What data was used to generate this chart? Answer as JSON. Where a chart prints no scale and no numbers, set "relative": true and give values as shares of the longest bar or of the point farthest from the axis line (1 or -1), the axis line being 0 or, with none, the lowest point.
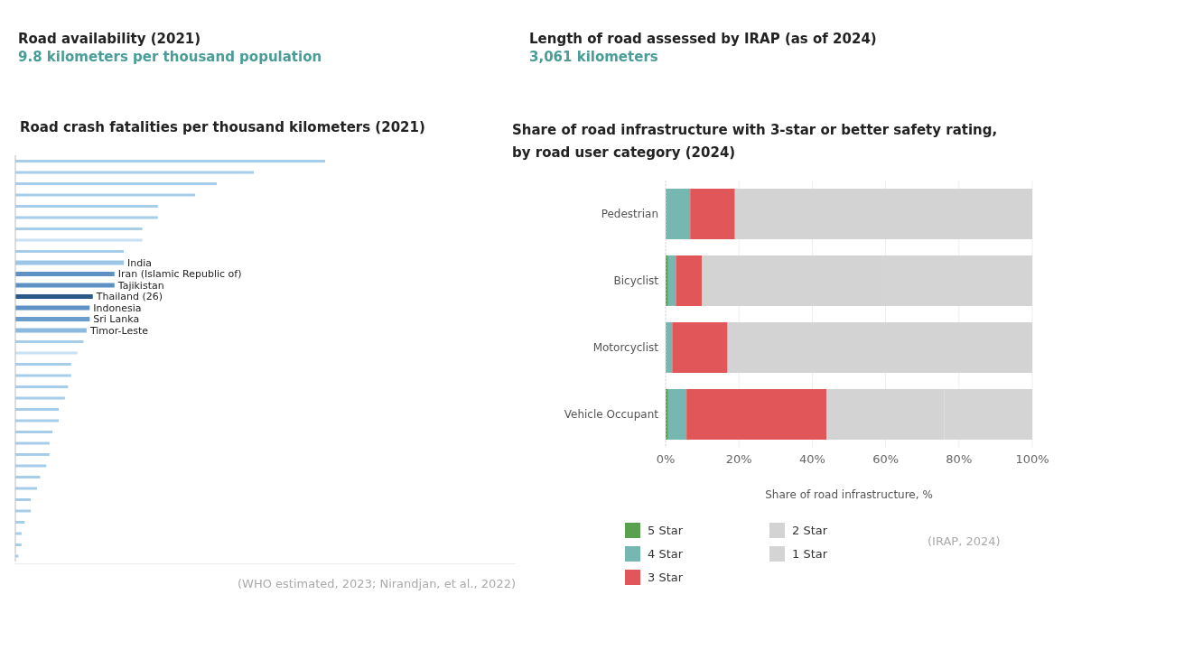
{
  "chart_data": [
    {
      "type": "other",
      "title": "Road availability (2021)",
      "subtitle": "9.8 kilometers per thousand population"
    },
    {
      "type": "other",
      "title": "Length of road assessed by IRAP (as of 2024)",
      "subtitle": "3,061 kilometers"
    },
    {
      "type": "bar",
      "orientation": "horizontal",
      "relative": true,
      "title": "Road crash fatalities per thousand kilometers (2021)",
      "categories": [
        null,
        null,
        null,
        null,
        null,
        null,
        null,
        null,
        null,
        "India",
        "Iran (Islamic Republic of)",
        "Tajikistan",
        "Thailand (26)",
        "Indonesia",
        "Sri Lanka",
        "Timor-Leste",
        null,
        null,
        null,
        null,
        null,
        null,
        null,
        null,
        null,
        null,
        null,
        null,
        null,
        null,
        null,
        null,
        null,
        null,
        null,
        null
      ],
      "values": [
        1,
        0.77,
        0.65,
        0.58,
        0.46,
        0.46,
        0.41,
        0.41,
        0.35,
        0.35,
        0.32,
        0.32,
        0.25,
        0.24,
        0.24,
        0.23,
        0.22,
        0.2,
        0.18,
        0.18,
        0.17,
        0.16,
        0.14,
        0.14,
        0.12,
        0.11,
        0.11,
        0.1,
        0.08,
        0.07,
        0.05,
        0.05,
        0.03,
        0.02,
        0.02,
        0.01
      ],
      "colors": [
        "#a6cde9",
        "#a6cde9",
        "#a6cde9",
        "#a6cde9",
        "#a6cde9",
        "#a6cde9",
        "#a6cde9",
        "#c9e2f3",
        "#a6cde9",
        "#9cc6e6",
        "#5f92c4",
        "#5f92c4",
        "#2b5a8a",
        "#5f92c4",
        "#6b9dcc",
        "#8cb9df",
        "#a6cde9",
        "#c9e2f3",
        "#a6cde9",
        "#a6cde9",
        "#a6cde9",
        "#a6cde9",
        "#a6cde9",
        "#a6cde9",
        "#a6cde9",
        "#a6cde9",
        "#a6cde9",
        "#a6cde9",
        "#a6cde9",
        "#a6cde9",
        "#a6cde9",
        "#a6cde9",
        "#a6cde9",
        "#a6cde9",
        "#a6cde9",
        "#a6cde9"
      ],
      "annotations": [
        "(WHO estimated, 2023; Nirandjan, et al., 2022)"
      ]
    },
    {
      "type": "bar",
      "orientation": "horizontal",
      "stacked": true,
      "title": "Share of road infrastructure with 3-star or better safety rating, by road user category (2024)",
      "categories": [
        "Pedestrian",
        "Bicyclist",
        "Motorcyclist",
        "Vehicle Occupant"
      ],
      "series": [
        {
          "name": "5 Star",
          "color": "#59a14f",
          "values": [
            0,
            0.7,
            0,
            0.7
          ]
        },
        {
          "name": "4 Star",
          "color": "#76b7b2",
          "values": [
            6.7,
            2.1,
            1.8,
            5.0
          ]
        },
        {
          "name": "3 Star",
          "color": "#e15759",
          "values": [
            12.2,
            7.1,
            15.1,
            38.2
          ]
        },
        {
          "name": "2 Star",
          "color": "#d3d3d3",
          "values": [
            81.1,
            49.2,
            83.1,
            32.1
          ]
        },
        {
          "name": "1 Star",
          "color": "#d4d4d4",
          "values": [
            0,
            40.9,
            0,
            24.0
          ]
        }
      ],
      "xlim": [
        0,
        100
      ],
      "xticks": [
        {
          "value": 0,
          "label": "0%"
        },
        {
          "value": 20,
          "label": "20%"
        },
        {
          "value": 40,
          "label": "40%"
        },
        {
          "value": 60,
          "label": "60%"
        },
        {
          "value": 80,
          "label": "80%"
        },
        {
          "value": 100,
          "label": "100%"
        }
      ],
      "xlabel": "Share of road infrastructure, %",
      "grid": "x",
      "legend": "bottom",
      "annotations": [
        "(IRAP, 2024)"
      ]
    }
  ]
}
